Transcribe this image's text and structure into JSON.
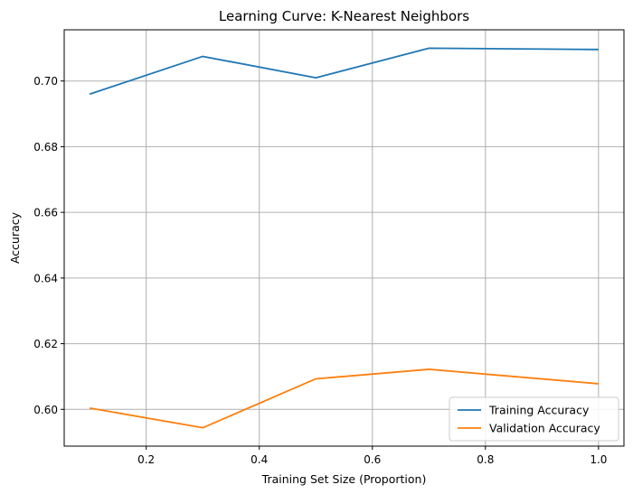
{
  "chart_data": {
    "type": "line",
    "title": "Learning Curve: K-Nearest Neighbors",
    "xlabel": "Training Set Size (Proportion)",
    "ylabel": "Accuracy",
    "x": [
      0.1,
      0.3,
      0.5,
      0.7,
      1.0
    ],
    "xlim": [
      0.055,
      1.045
    ],
    "ylim": [
      0.5888,
      0.7156
    ],
    "xticks": [
      0.2,
      0.4,
      0.6,
      0.8,
      1.0
    ],
    "xtick_labels": [
      "0.2",
      "0.4",
      "0.6",
      "0.8",
      "1.0"
    ],
    "yticks": [
      0.6,
      0.62,
      0.64,
      0.66,
      0.68,
      0.7
    ],
    "ytick_labels": [
      "0.60",
      "0.62",
      "0.64",
      "0.66",
      "0.68",
      "0.70"
    ],
    "grid": true,
    "legend_position": "lower-right",
    "series": [
      {
        "name": "Training Accuracy",
        "color": "#1f77b4",
        "values": [
          0.696,
          0.7075,
          0.701,
          0.71,
          0.7096
        ]
      },
      {
        "name": "Validation Accuracy",
        "color": "#ff7f0e",
        "values": [
          0.6004,
          0.5944,
          0.6093,
          0.6122,
          0.6078
        ]
      }
    ]
  }
}
